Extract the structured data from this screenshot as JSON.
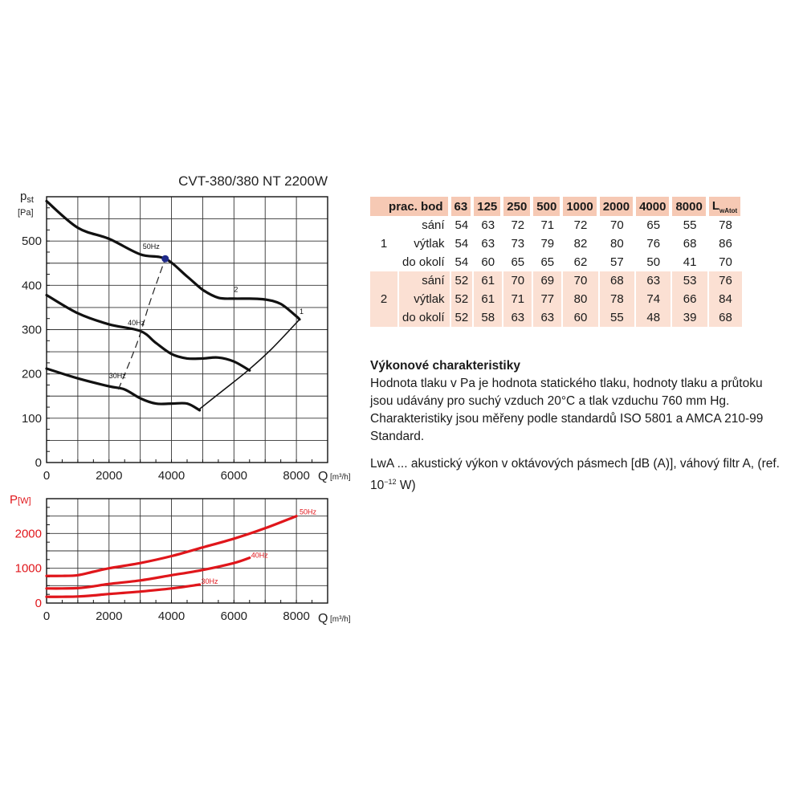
{
  "chart_data": [
    {
      "type": "line",
      "title": "CVT-380/380 NT 2200W",
      "ylabel_main": "p",
      "ylabel_sub": "st",
      "yunit": "[Pa]",
      "xlabel": "Q",
      "xunit": "[m³/h]",
      "xlim": [
        0,
        9000
      ],
      "ylim": [
        0,
        600
      ],
      "xticks": [
        0,
        2000,
        4000,
        6000,
        8000
      ],
      "yticks": [
        0,
        100,
        200,
        300,
        400,
        500
      ],
      "grid": true,
      "series": [
        {
          "name": "50Hz",
          "x": [
            0,
            1000,
            2000,
            3000,
            3800,
            4500,
            5000,
            5500,
            6000,
            6500,
            7000,
            7500,
            8000,
            8100
          ],
          "y": [
            590,
            530,
            505,
            470,
            460,
            420,
            390,
            372,
            370,
            370,
            368,
            358,
            330,
            323
          ]
        },
        {
          "name": "40Hz",
          "x": [
            0,
            1000,
            2000,
            3000,
            3500,
            4000,
            4500,
            5000,
            5500,
            6000,
            6500
          ],
          "y": [
            378,
            337,
            312,
            297,
            270,
            245,
            235,
            235,
            237,
            228,
            208
          ]
        },
        {
          "name": "30Hz",
          "x": [
            0,
            1000,
            2000,
            2500,
            3000,
            3500,
            4000,
            4500,
            4900
          ],
          "y": [
            212,
            190,
            172,
            165,
            145,
            133,
            133,
            133,
            118
          ]
        }
      ],
      "annotations": [
        {
          "label": "50Hz",
          "x": 3800,
          "y": 460,
          "marker": true
        },
        {
          "label": "40Hz",
          "x": 2600,
          "y": 310
        },
        {
          "label": "30Hz",
          "x": 2000,
          "y": 190
        },
        {
          "label": "1",
          "x": 8100,
          "y": 335
        },
        {
          "label": "2",
          "x": 6000,
          "y": 385
        }
      ],
      "system_curve": {
        "x": [
          2300,
          2900,
          3300,
          3800
        ],
        "y": [
          165,
          270,
          360,
          460
        ]
      },
      "boundary_curve": {
        "x": [
          4850,
          5600,
          6450,
          7200,
          8100
        ],
        "y": [
          118,
          160,
          208,
          256,
          323
        ]
      }
    },
    {
      "type": "line",
      "ylabel_main": "P",
      "yunit": "[W]",
      "xlabel": "Q",
      "xunit": "[m³/h]",
      "xlim": [
        0,
        9000
      ],
      "ylim": [
        0,
        3000
      ],
      "xticks": [
        0,
        2000,
        4000,
        6000,
        8000
      ],
      "yticks": [
        0,
        1000,
        2000
      ],
      "grid": true,
      "series": [
        {
          "name": "50Hz",
          "x": [
            0,
            500,
            1000,
            1500,
            2000,
            3000,
            4000,
            5000,
            6000,
            7000,
            8000
          ],
          "y": [
            780,
            780,
            800,
            900,
            1000,
            1150,
            1350,
            1600,
            1850,
            2150,
            2500
          ]
        },
        {
          "name": "40Hz",
          "x": [
            0,
            500,
            1000,
            1500,
            2000,
            3000,
            4000,
            5000,
            6000,
            6500
          ],
          "y": [
            420,
            420,
            430,
            480,
            550,
            650,
            800,
            950,
            1150,
            1300
          ]
        },
        {
          "name": "30Hz",
          "x": [
            0,
            500,
            1000,
            1500,
            2000,
            3000,
            4000,
            4900
          ],
          "y": [
            180,
            180,
            190,
            220,
            260,
            330,
            420,
            530
          ]
        }
      ],
      "annotations": [
        {
          "label": "50Hz",
          "x": 8100,
          "y": 2550
        },
        {
          "label": "40Hz",
          "x": 6550,
          "y": 1300
        },
        {
          "label": "30Hz",
          "x": 4950,
          "y": 550
        }
      ]
    },
    {
      "type": "table",
      "columns": [
        "prac. bod",
        "63",
        "125",
        "250",
        "500",
        "1000",
        "2000",
        "4000",
        "8000",
        "L",
        "wAtot"
      ],
      "groups": [
        {
          "point": "1",
          "rows": [
            {
              "label": "sání",
              "values": [
                "54",
                "63",
                "72",
                "71",
                "72",
                "70",
                "65",
                "55",
                "78"
              ]
            },
            {
              "label": "výtlak",
              "values": [
                "54",
                "63",
                "73",
                "79",
                "82",
                "80",
                "76",
                "68",
                "86"
              ]
            },
            {
              "label": "do okolí",
              "values": [
                "54",
                "60",
                "65",
                "65",
                "62",
                "57",
                "50",
                "41",
                "70"
              ]
            }
          ]
        },
        {
          "point": "2",
          "rows": [
            {
              "label": "sání",
              "values": [
                "52",
                "61",
                "70",
                "69",
                "70",
                "68",
                "63",
                "53",
                "76"
              ]
            },
            {
              "label": "výtlak",
              "values": [
                "52",
                "61",
                "71",
                "77",
                "80",
                "78",
                "74",
                "66",
                "84"
              ]
            },
            {
              "label": "do okolí",
              "values": [
                "52",
                "58",
                "63",
                "63",
                "60",
                "55",
                "48",
                "39",
                "68"
              ]
            }
          ]
        }
      ]
    }
  ],
  "description": {
    "heading": "Výkonové charakteristiky",
    "body": "Hodnota tlaku v Pa je hodnota statického tlaku, hodnoty tlaku a průtoku jsou udávány pro suchý vzduch 20°C a tlak vzduchu 760 mm Hg. Charakteristiky jsou měřeny podle standardů ISO 5801 a AMCA 210-99 Standard.",
    "lwa_prefix": "LwA ... akustický výkon v oktávových pásmech [dB (A)], váhový filtr A, (ref. 10",
    "lwa_exp": "−12",
    "lwa_suffix": " W)"
  },
  "colors": {
    "pressure_curves": "#111111",
    "power_curves": "#e0161b",
    "marker": "#1f2a8a",
    "table_header": "#f6c9b4",
    "table_group2": "#fbe0d3"
  }
}
